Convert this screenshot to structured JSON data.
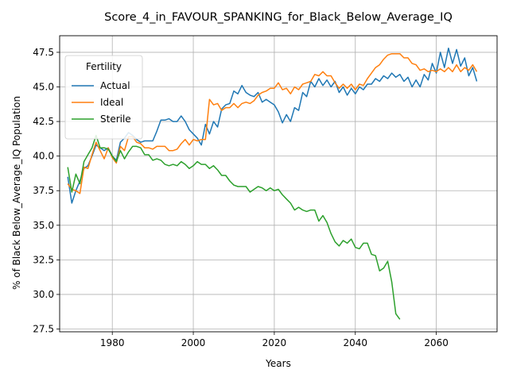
{
  "chart_data": {
    "type": "line",
    "title": "Score_4_in_FAVOUR_SPANKING_for_Black_Below_Average_IQ",
    "xlabel": "Years",
    "ylabel": "% of Black Below_Average_IQ Population",
    "xlim": [
      1967,
      2075
    ],
    "ylim": [
      27.3,
      48.7
    ],
    "xticks": [
      1980,
      2000,
      2020,
      2040,
      2060
    ],
    "yticks": [
      27.5,
      30.0,
      32.5,
      35.0,
      37.5,
      40.0,
      42.5,
      45.0,
      47.5
    ],
    "grid": true,
    "legend": {
      "title": "Fertility",
      "position": "top-left"
    },
    "series": [
      {
        "name": "Actual",
        "color": "#1f77b4",
        "x": [
          1969,
          1970,
          1971,
          1972,
          1973,
          1974,
          1975,
          1976,
          1977,
          1978,
          1979,
          1980,
          1981,
          1982,
          1983,
          1984,
          1985,
          1986,
          1987,
          1988,
          1989,
          1990,
          1991,
          1992,
          1993,
          1994,
          1995,
          1996,
          1997,
          1998,
          1999,
          2000,
          2001,
          2002,
          2003,
          2004,
          2005,
          2006,
          2007,
          2008,
          2009,
          2010,
          2011,
          2012,
          2013,
          2014,
          2015,
          2016,
          2017,
          2018,
          2019,
          2020,
          2021,
          2022,
          2023,
          2024,
          2025,
          2026,
          2027,
          2028,
          2029,
          2030,
          2031,
          2032,
          2033,
          2034,
          2035,
          2036,
          2037,
          2038,
          2039,
          2040,
          2041,
          2042,
          2043,
          2044,
          2045,
          2046,
          2047,
          2048,
          2049,
          2050,
          2051,
          2052,
          2053,
          2054,
          2055,
          2056,
          2057,
          2058,
          2059,
          2060,
          2061,
          2062,
          2063,
          2064,
          2065,
          2066,
          2067,
          2068,
          2069,
          2070
        ],
        "y": [
          38.5,
          36.6,
          37.5,
          38.2,
          39.1,
          39.3,
          40.0,
          40.8,
          40.6,
          40.4,
          40.6,
          40.0,
          39.7,
          41.0,
          41.3,
          41.7,
          41.5,
          41.2,
          41.0,
          41.1,
          41.1,
          41.1,
          41.8,
          42.6,
          42.6,
          42.7,
          42.5,
          42.5,
          42.9,
          42.5,
          41.9,
          41.6,
          41.3,
          40.8,
          42.3,
          41.6,
          42.5,
          42.1,
          43.4,
          43.7,
          43.8,
          44.7,
          44.5,
          45.1,
          44.6,
          44.4,
          44.3,
          44.6,
          43.9,
          44.1,
          43.9,
          43.7,
          43.2,
          42.4,
          43.0,
          42.5,
          43.5,
          43.3,
          44.6,
          44.3,
          45.4,
          45.0,
          45.6,
          45.1,
          45.5,
          45.0,
          45.4,
          44.6,
          45.0,
          44.4,
          44.9,
          44.5,
          45.0,
          44.8,
          45.2,
          45.2,
          45.6,
          45.4,
          45.8,
          45.6,
          46.0,
          45.7,
          45.9,
          45.4,
          45.7,
          45.0,
          45.5,
          45.0,
          45.9,
          45.5,
          46.7,
          46.0,
          47.5,
          46.4,
          47.8,
          46.7,
          47.7,
          46.5,
          47.1,
          45.8,
          46.4,
          45.4
        ]
      },
      {
        "name": "Ideal",
        "color": "#ff7f0e",
        "x": [
          1969,
          1970,
          1971,
          1972,
          1973,
          1974,
          1975,
          1976,
          1977,
          1978,
          1979,
          1980,
          1981,
          1982,
          1983,
          1984,
          1985,
          1986,
          1987,
          1988,
          1989,
          1990,
          1991,
          1992,
          1993,
          1994,
          1995,
          1996,
          1997,
          1998,
          1999,
          2000,
          2001,
          2002,
          2003,
          2004,
          2005,
          2006,
          2007,
          2008,
          2009,
          2010,
          2011,
          2012,
          2013,
          2014,
          2015,
          2016,
          2017,
          2018,
          2019,
          2020,
          2021,
          2022,
          2023,
          2024,
          2025,
          2026,
          2027,
          2028,
          2029,
          2030,
          2031,
          2032,
          2033,
          2034,
          2035,
          2036,
          2037,
          2038,
          2039,
          2040,
          2041,
          2042,
          2043,
          2044,
          2045,
          2046,
          2047,
          2048,
          2049,
          2050,
          2051,
          2052,
          2053,
          2054,
          2055,
          2056,
          2057,
          2058,
          2059,
          2060,
          2061,
          2062,
          2063,
          2064,
          2065,
          2066,
          2067,
          2068,
          2069,
          2070
        ],
        "y": [
          38.0,
          37.6,
          37.5,
          37.3,
          39.2,
          39.1,
          40.1,
          41.0,
          40.4,
          39.8,
          40.6,
          39.9,
          39.5,
          40.7,
          40.4,
          41.4,
          41.4,
          41.0,
          40.9,
          40.6,
          40.6,
          40.5,
          40.7,
          40.7,
          40.7,
          40.4,
          40.4,
          40.5,
          40.9,
          41.2,
          40.8,
          41.2,
          41.1,
          41.2,
          41.2,
          44.1,
          43.7,
          43.8,
          43.3,
          43.5,
          43.5,
          43.8,
          43.5,
          43.8,
          43.9,
          43.8,
          44.0,
          44.4,
          44.6,
          44.7,
          44.9,
          44.9,
          45.3,
          44.8,
          44.9,
          44.5,
          45.0,
          44.8,
          45.2,
          45.3,
          45.4,
          45.9,
          45.8,
          46.1,
          45.8,
          45.8,
          45.3,
          44.9,
          45.2,
          44.9,
          45.2,
          44.8,
          45.2,
          45.1,
          45.6,
          46.0,
          46.4,
          46.6,
          47.0,
          47.3,
          47.4,
          47.4,
          47.4,
          47.1,
          47.1,
          46.7,
          46.6,
          46.2,
          46.3,
          46.1,
          46.2,
          46.1,
          46.3,
          46.1,
          46.4,
          46.1,
          46.6,
          46.1,
          46.4,
          46.2,
          46.6,
          46.1
        ]
      },
      {
        "name": "Sterile",
        "color": "#2ca02c",
        "x": [
          1969,
          1970,
          1971,
          1972,
          1973,
          1974,
          1975,
          1976,
          1977,
          1978,
          1979,
          1980,
          1981,
          1982,
          1983,
          1984,
          1985,
          1986,
          1987,
          1988,
          1989,
          1990,
          1991,
          1992,
          1993,
          1994,
          1995,
          1996,
          1997,
          1998,
          1999,
          2000,
          2001,
          2002,
          2003,
          2004,
          2005,
          2006,
          2007,
          2008,
          2009,
          2010,
          2011,
          2012,
          2013,
          2014,
          2015,
          2016,
          2017,
          2018,
          2019,
          2020,
          2021,
          2022,
          2023,
          2024,
          2025,
          2026,
          2027,
          2028,
          2029,
          2030,
          2031,
          2032,
          2033,
          2034,
          2035,
          2036,
          2037,
          2038,
          2039,
          2040,
          2041,
          2042,
          2043,
          2044,
          2045,
          2046,
          2047,
          2048,
          2049,
          2050,
          2051
        ],
        "y": [
          39.2,
          37.4,
          38.7,
          38.0,
          39.6,
          40.1,
          40.6,
          41.5,
          40.6,
          40.6,
          40.5,
          40.0,
          39.6,
          40.4,
          39.8,
          40.3,
          40.7,
          40.7,
          40.6,
          40.1,
          40.1,
          39.7,
          39.8,
          39.7,
          39.4,
          39.3,
          39.4,
          39.3,
          39.6,
          39.4,
          39.1,
          39.3,
          39.6,
          39.4,
          39.4,
          39.1,
          39.3,
          39.0,
          38.6,
          38.6,
          38.2,
          37.9,
          37.8,
          37.8,
          37.8,
          37.4,
          37.6,
          37.8,
          37.7,
          37.5,
          37.7,
          37.5,
          37.6,
          37.2,
          36.9,
          36.6,
          36.1,
          36.3,
          36.1,
          36.0,
          36.1,
          36.1,
          35.3,
          35.7,
          35.2,
          34.4,
          33.8,
          33.5,
          33.9,
          33.7,
          34.0,
          33.4,
          33.3,
          33.7,
          33.7,
          32.9,
          32.8,
          31.7,
          31.9,
          32.4,
          30.9,
          28.6,
          28.2
        ]
      }
    ]
  }
}
